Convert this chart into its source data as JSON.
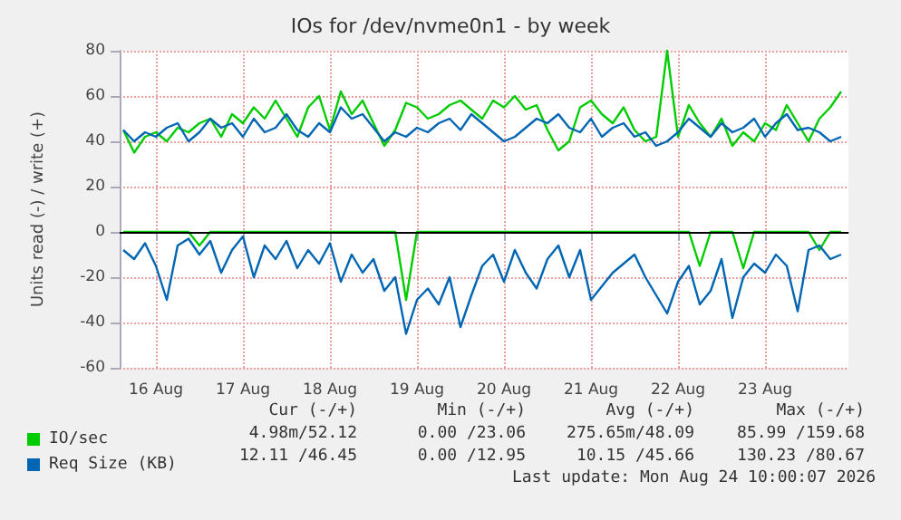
{
  "chart_data": {
    "type": "line",
    "title": "IOs for /dev/nvme0n1 - by week",
    "ylabel": "Units read (-) / write (+)",
    "x": [
      "2026-08-16T03:00",
      "2026-08-16T06:00",
      "2026-08-16T09:00",
      "2026-08-16T12:00",
      "2026-08-16T15:00",
      "2026-08-16T18:00",
      "2026-08-16T21:00",
      "2026-08-17T00:00",
      "2026-08-17T03:00",
      "2026-08-17T06:00",
      "2026-08-17T09:00",
      "2026-08-17T12:00",
      "2026-08-17T15:00",
      "2026-08-17T18:00",
      "2026-08-17T21:00",
      "2026-08-18T00:00",
      "2026-08-18T03:00",
      "2026-08-18T06:00",
      "2026-08-18T09:00",
      "2026-08-18T12:00",
      "2026-08-18T15:00",
      "2026-08-18T18:00",
      "2026-08-18T21:00",
      "2026-08-19T00:00",
      "2026-08-19T03:00",
      "2026-08-19T06:00",
      "2026-08-19T09:00",
      "2026-08-19T12:00",
      "2026-08-19T15:00",
      "2026-08-19T18:00",
      "2026-08-19T21:00",
      "2026-08-20T00:00",
      "2026-08-20T03:00",
      "2026-08-20T06:00",
      "2026-08-20T09:00",
      "2026-08-20T12:00",
      "2026-08-20T15:00",
      "2026-08-20T18:00",
      "2026-08-20T21:00",
      "2026-08-21T00:00",
      "2026-08-21T03:00",
      "2026-08-21T06:00",
      "2026-08-21T09:00",
      "2026-08-21T12:00",
      "2026-08-21T15:00",
      "2026-08-21T18:00",
      "2026-08-21T21:00",
      "2026-08-22T00:00",
      "2026-08-22T03:00",
      "2026-08-22T06:00",
      "2026-08-22T09:00",
      "2026-08-22T12:00",
      "2026-08-22T15:00",
      "2026-08-22T18:00",
      "2026-08-22T21:00",
      "2026-08-23T00:00",
      "2026-08-23T03:00",
      "2026-08-23T06:00",
      "2026-08-23T09:00",
      "2026-08-23T12:00",
      "2026-08-23T15:00",
      "2026-08-23T18:00",
      "2026-08-23T21:00",
      "2026-08-24T00:00",
      "2026-08-24T03:00",
      "2026-08-24T06:00",
      "2026-08-24T09:00"
    ],
    "series": [
      {
        "name": "IO/sec",
        "color": "#00cc00",
        "values": [
          45,
          35,
          42,
          44,
          40,
          46,
          44,
          48,
          50,
          42,
          52,
          48,
          55,
          50,
          58,
          50,
          42,
          55,
          60,
          45,
          62,
          52,
          58,
          48,
          38,
          45,
          57,
          55,
          50,
          52,
          56,
          58,
          54,
          50,
          58,
          55,
          60,
          54,
          56,
          45,
          36,
          40,
          55,
          58,
          52,
          48,
          55,
          45,
          40,
          42,
          80,
          42,
          56,
          48,
          42,
          50,
          38,
          44,
          40,
          48,
          45,
          56,
          48,
          40,
          50,
          55,
          62
        ]
      },
      {
        "name": "Req Size (KB)",
        "color": "#0066b3",
        "values": [
          45,
          40,
          44,
          42,
          46,
          48,
          40,
          44,
          50,
          46,
          48,
          42,
          50,
          44,
          46,
          52,
          45,
          42,
          48,
          44,
          55,
          50,
          52,
          46,
          40,
          44,
          42,
          46,
          44,
          48,
          50,
          45,
          52,
          48,
          44,
          40,
          42,
          46,
          50,
          48,
          52,
          46,
          44,
          50,
          42,
          46,
          48,
          42,
          44,
          38,
          40,
          44,
          50,
          46,
          42,
          48,
          44,
          46,
          50,
          42,
          48,
          52,
          45,
          46,
          44,
          40,
          42
        ]
      },
      {
        "color": "#00cc00",
        "values": [
          0,
          0,
          0,
          0,
          0,
          0,
          0,
          -6,
          0,
          0,
          0,
          0,
          0,
          0,
          0,
          0,
          0,
          0,
          0,
          0,
          0,
          0,
          0,
          0,
          0,
          0,
          -30,
          0,
          0,
          0,
          0,
          0,
          0,
          0,
          0,
          0,
          0,
          0,
          0,
          0,
          0,
          0,
          0,
          0,
          0,
          0,
          0,
          0,
          0,
          0,
          0,
          0,
          0,
          -15,
          0,
          0,
          0,
          -16,
          0,
          0,
          0,
          0,
          0,
          0,
          -8,
          0,
          0
        ]
      },
      {
        "color": "#0066b3",
        "values": [
          -8,
          -12,
          -5,
          -15,
          -30,
          -6,
          -3,
          -10,
          -4,
          -18,
          -8,
          -2,
          -20,
          -6,
          -12,
          -4,
          -16,
          -8,
          -14,
          -5,
          -22,
          -10,
          -18,
          -12,
          -26,
          -20,
          -45,
          -30,
          -25,
          -32,
          -20,
          -42,
          -28,
          -15,
          -10,
          -22,
          -8,
          -18,
          -25,
          -12,
          -6,
          -20,
          -8,
          -30,
          -24,
          -18,
          -14,
          -10,
          -20,
          -28,
          -36,
          -22,
          -15,
          -32,
          -26,
          -12,
          -38,
          -20,
          -14,
          -18,
          -10,
          -15,
          -35,
          -8,
          -6,
          -12,
          -10
        ]
      }
    ],
    "xlim": [
      "2026-08-16T02:00",
      "2026-08-24T11:00"
    ],
    "xticks": [
      {
        "value": "2026-08-16T12:00",
        "label": "16 Aug"
      },
      {
        "value": "2026-08-17T12:00",
        "label": "17 Aug"
      },
      {
        "value": "2026-08-18T12:00",
        "label": "18 Aug"
      },
      {
        "value": "2026-08-19T12:00",
        "label": "19 Aug"
      },
      {
        "value": "2026-08-20T12:00",
        "label": "20 Aug"
      },
      {
        "value": "2026-08-21T12:00",
        "label": "21 Aug"
      },
      {
        "value": "2026-08-22T12:00",
        "label": "22 Aug"
      },
      {
        "value": "2026-08-23T12:00",
        "label": "23 Aug"
      }
    ],
    "ylim": [
      -60,
      80
    ],
    "yticks": [
      -60,
      -40,
      -20,
      0,
      20,
      40,
      60,
      80
    ],
    "grid": true,
    "legend": "bottom",
    "ref_lines": [
      {
        "axis": "y",
        "value": 0,
        "color": "#000000"
      }
    ],
    "annotations": [
      "Cur (-/+)",
      "Min (-/+)",
      "Avg (-/+)",
      "Max (-/+)",
      "4.98m/52.12",
      "0.00 /23.06",
      "275.65m/48.09",
      "85.99 /159.68",
      "12.11 /46.45",
      "0.00 /12.95",
      "10.15 /45.66",
      "130.23 /80.67",
      "Last update: Mon Aug 24 10:00:07 2026"
    ]
  }
}
